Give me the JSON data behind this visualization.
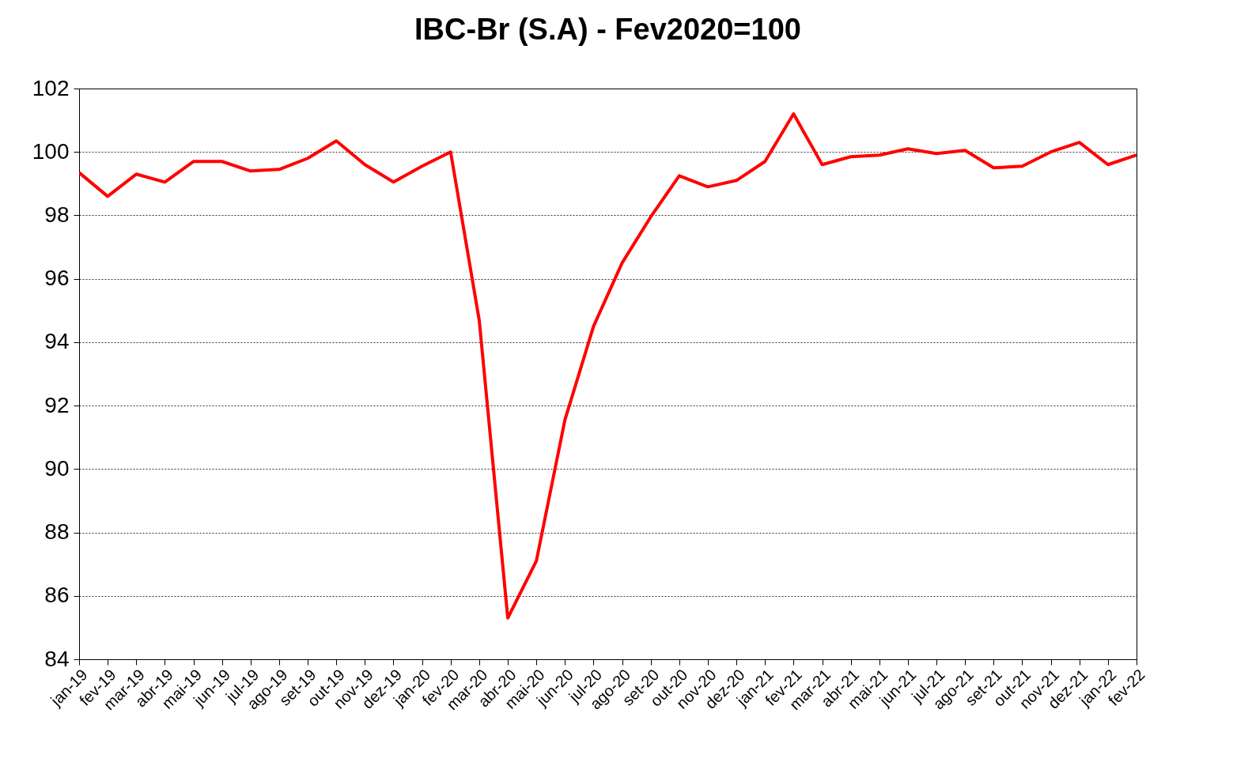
{
  "chart_data": {
    "type": "line",
    "title": "IBC-Br (S.A) - Fev2020=100",
    "categories": [
      "jan-19",
      "fev-19",
      "mar-19",
      "abr-19",
      "mai-19",
      "jun-19",
      "jul-19",
      "ago-19",
      "set-19",
      "out-19",
      "nov-19",
      "dez-19",
      "jan-20",
      "fev-20",
      "mar-20",
      "abr-20",
      "mai-20",
      "jun-20",
      "jul-20",
      "ago-20",
      "set-20",
      "out-20",
      "nov-20",
      "dez-20",
      "jan-21",
      "fev-21",
      "mar-21",
      "abr-21",
      "mai-21",
      "jun-21",
      "jul-21",
      "ago-21",
      "set-21",
      "out-21",
      "nov-21",
      "dez-21",
      "jan-22",
      "fev-22"
    ],
    "series": [
      {
        "color": "#ff0000",
        "values": [
          99.35,
          98.6,
          99.3,
          99.05,
          99.7,
          99.7,
          99.4,
          99.45,
          99.8,
          100.35,
          99.6,
          99.05,
          99.55,
          100.0,
          94.7,
          85.3,
          87.1,
          91.55,
          94.5,
          96.5,
          97.95,
          99.25,
          98.9,
          99.1,
          99.7,
          101.2,
          99.6,
          99.85,
          99.9,
          100.1,
          99.95,
          100.05,
          99.5,
          99.55,
          100.0,
          100.3,
          99.6,
          99.9
        ]
      }
    ],
    "ylim": [
      84,
      102
    ],
    "yticks": [
      84,
      86,
      88,
      90,
      92,
      94,
      96,
      98,
      100,
      102
    ],
    "grid": "y",
    "marker": "none",
    "line_style": "solid"
  }
}
